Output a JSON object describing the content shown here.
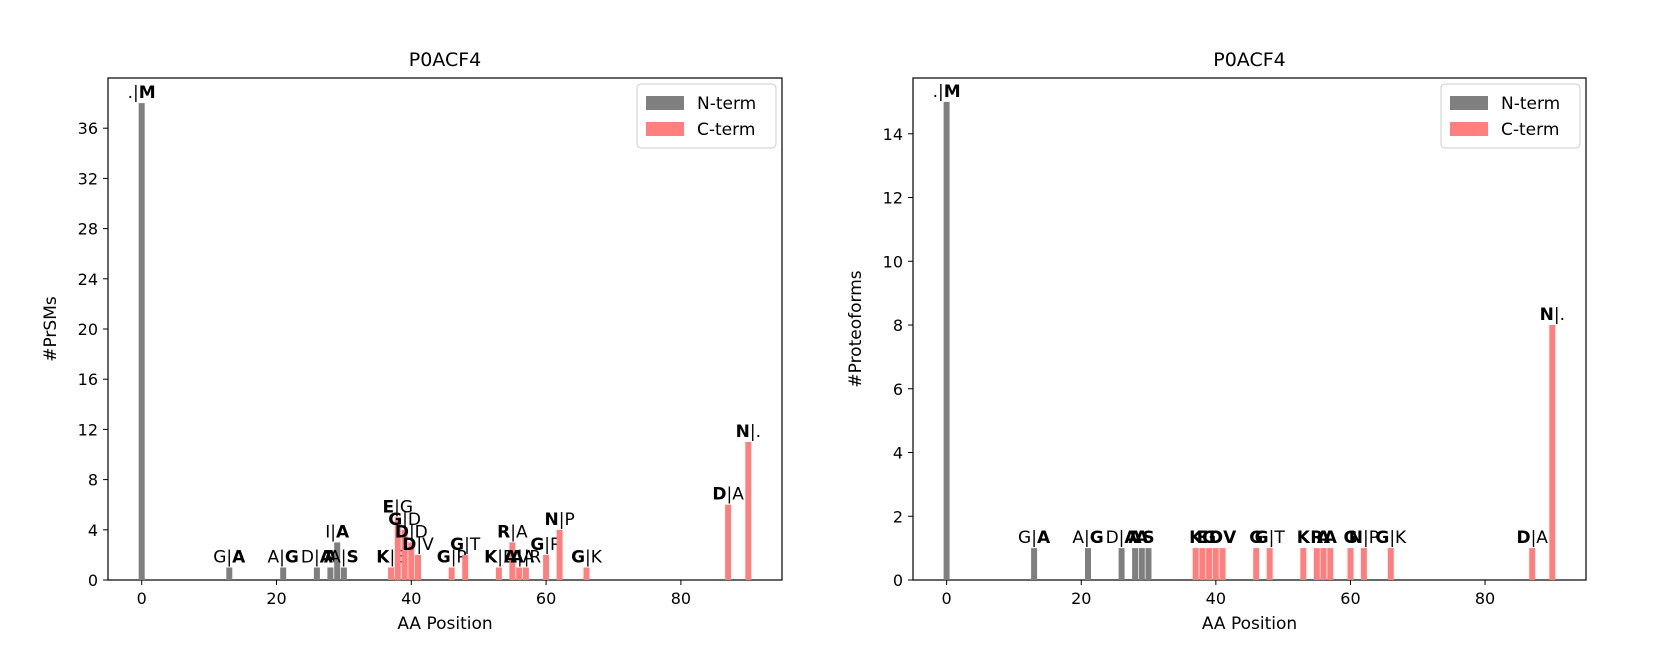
{
  "colors": {
    "nterm": "#7f7f7f",
    "cterm": "#ff7f7f",
    "axis": "#000000",
    "background": "#ffffff"
  },
  "chart_data": [
    {
      "type": "bar",
      "title": "P0ACF4",
      "xlabel": "AA Position",
      "ylabel": "#PrSMs",
      "xlim": [
        -5,
        95
      ],
      "ylim": [
        0,
        40
      ],
      "xticks": [
        0,
        20,
        40,
        60,
        80
      ],
      "yticks": [
        0,
        4,
        8,
        12,
        16,
        20,
        24,
        28,
        32,
        36
      ],
      "grid": false,
      "legend": {
        "position": "top-right",
        "entries": [
          {
            "series": "nterm",
            "label": "N-term"
          },
          {
            "series": "cterm",
            "label": "C-term"
          }
        ]
      },
      "series": [
        {
          "name": "N-term",
          "key": "nterm",
          "points": [
            {
              "x": 0,
              "y": 38,
              "label": [
                [
                  ".|",
                  false
                ],
                [
                  "M",
                  true
                ]
              ]
            },
            {
              "x": 13,
              "y": 1,
              "label": [
                [
                  "G|",
                  false
                ],
                [
                  "A",
                  true
                ]
              ]
            },
            {
              "x": 21,
              "y": 1,
              "label": [
                [
                  "A|",
                  false
                ],
                [
                  "G",
                  true
                ]
              ]
            },
            {
              "x": 26,
              "y": 1,
              "label": [
                [
                  "D|",
                  false
                ],
                [
                  "A",
                  true
                ]
              ]
            },
            {
              "x": 28,
              "y": 1,
              "label": [
                [
                  "A",
                  true
                ]
              ]
            },
            {
              "x": 29,
              "y": 3,
              "label": [
                [
                  "I|",
                  false
                ],
                [
                  "A",
                  true
                ]
              ]
            },
            {
              "x": 30,
              "y": 1,
              "label": [
                [
                  "A|",
                  false
                ],
                [
                  "S",
                  true
                ]
              ]
            }
          ]
        },
        {
          "name": "C-term",
          "key": "cterm",
          "points": [
            {
              "x": 37,
              "y": 1,
              "label": [
                [
                  "K",
                  true
                ],
                [
                  "|E",
                  false
                ]
              ]
            },
            {
              "x": 38,
              "y": 5,
              "label": [
                [
                  "E",
                  true
                ],
                [
                  "|G",
                  false
                ]
              ]
            },
            {
              "x": 39,
              "y": 4,
              "label": [
                [
                  "G",
                  true
                ],
                [
                  "|D",
                  false
                ]
              ]
            },
            {
              "x": 40,
              "y": 3,
              "label": [
                [
                  "D",
                  true
                ],
                [
                  "|D",
                  false
                ]
              ]
            },
            {
              "x": 41,
              "y": 2,
              "label": [
                [
                  "D",
                  true
                ],
                [
                  "|V",
                  false
                ]
              ]
            },
            {
              "x": 46,
              "y": 1,
              "label": [
                [
                  "G",
                  true
                ],
                [
                  "|P",
                  false
                ]
              ]
            },
            {
              "x": 48,
              "y": 2,
              "label": [
                [
                  "G",
                  true
                ],
                [
                  "|T",
                  false
                ]
              ]
            },
            {
              "x": 53,
              "y": 1,
              "label": [
                [
                  "K",
                  true
                ],
                [
                  "|E",
                  false
                ]
              ]
            },
            {
              "x": 55,
              "y": 3,
              "label": [
                [
                  "R",
                  true
                ],
                [
                  "|A",
                  false
                ]
              ]
            },
            {
              "x": 56,
              "y": 1,
              "label": [
                [
                  "A",
                  true
                ],
                [
                  "|A",
                  false
                ]
              ]
            },
            {
              "x": 57,
              "y": 1,
              "label": [
                [
                  "A",
                  true
                ],
                [
                  "|R",
                  false
                ]
              ]
            },
            {
              "x": 60,
              "y": 2,
              "label": [
                [
                  "G",
                  true
                ],
                [
                  "|R",
                  false
                ]
              ]
            },
            {
              "x": 62,
              "y": 4,
              "label": [
                [
                  "N",
                  true
                ],
                [
                  "|P",
                  false
                ]
              ]
            },
            {
              "x": 66,
              "y": 1,
              "label": [
                [
                  "G",
                  true
                ],
                [
                  "|K",
                  false
                ]
              ]
            },
            {
              "x": 87,
              "y": 6,
              "label": [
                [
                  "D",
                  true
                ],
                [
                  "|A",
                  false
                ]
              ]
            },
            {
              "x": 90,
              "y": 11,
              "label": [
                [
                  "N",
                  true
                ],
                [
                  "|.",
                  false
                ]
              ]
            }
          ]
        }
      ]
    },
    {
      "type": "bar",
      "title": "P0ACF4",
      "xlabel": "AA Position",
      "ylabel": "#Proteoforms",
      "xlim": [
        -5,
        95
      ],
      "ylim": [
        0,
        15.75
      ],
      "xticks": [
        0,
        20,
        40,
        60,
        80
      ],
      "yticks": [
        0,
        2,
        4,
        6,
        8,
        10,
        12,
        14
      ],
      "grid": false,
      "legend": {
        "position": "top-right",
        "entries": [
          {
            "series": "nterm",
            "label": "N-term"
          },
          {
            "series": "cterm",
            "label": "C-term"
          }
        ]
      },
      "series": [
        {
          "name": "N-term",
          "key": "nterm",
          "points": [
            {
              "x": 0,
              "y": 15,
              "label": [
                [
                  ".|",
                  false
                ],
                [
                  "M",
                  true
                ]
              ]
            },
            {
              "x": 13,
              "y": 1,
              "label": [
                [
                  "G|",
                  false
                ],
                [
                  "A",
                  true
                ]
              ]
            },
            {
              "x": 21,
              "y": 1,
              "label": [
                [
                  "A|",
                  false
                ],
                [
                  "G",
                  true
                ]
              ]
            },
            {
              "x": 26,
              "y": 1,
              "label": [
                [
                  "D|",
                  false
                ],
                [
                  "A",
                  true
                ]
              ]
            },
            {
              "x": 28,
              "y": 1,
              "label": [
                [
                  "A",
                  true
                ]
              ]
            },
            {
              "x": 29,
              "y": 1,
              "label": [
                [
                  "A",
                  true
                ]
              ]
            },
            {
              "x": 30,
              "y": 1,
              "label": [
                [
                  "S",
                  true
                ]
              ]
            }
          ]
        },
        {
          "name": "C-term",
          "key": "cterm",
          "points": [
            {
              "x": 37,
              "y": 1,
              "label": [
                [
                  "K",
                  true
                ]
              ]
            },
            {
              "x": 38,
              "y": 1,
              "label": [
                [
                  "E",
                  true
                ]
              ]
            },
            {
              "x": 39,
              "y": 1,
              "label": [
                [
                  "G",
                  true
                ]
              ]
            },
            {
              "x": 40,
              "y": 1,
              "label": [
                [
                  "D",
                  true
                ]
              ]
            },
            {
              "x": 41,
              "y": 1,
              "label": [
                [
                  "D",
                  true
                ],
                [
                  "V",
                  true
                ]
              ]
            },
            {
              "x": 46,
              "y": 1,
              "label": [
                [
                  "G",
                  true
                ]
              ]
            },
            {
              "x": 48,
              "y": 1,
              "label": [
                [
                  "G",
                  true
                ],
                [
                  "|T",
                  false
                ]
              ]
            },
            {
              "x": 53,
              "y": 1,
              "label": [
                [
                  "K",
                  true
                ]
              ]
            },
            {
              "x": 55,
              "y": 1,
              "label": [
                [
                  "R",
                  true
                ]
              ]
            },
            {
              "x": 56,
              "y": 1,
              "label": [
                [
                  "A",
                  true
                ]
              ]
            },
            {
              "x": 57,
              "y": 1,
              "label": [
                [
                  "A",
                  true
                ]
              ]
            },
            {
              "x": 60,
              "y": 1,
              "label": [
                [
                  "G",
                  true
                ]
              ]
            },
            {
              "x": 62,
              "y": 1,
              "label": [
                [
                  "N",
                  true
                ],
                [
                  "|P",
                  false
                ]
              ]
            },
            {
              "x": 66,
              "y": 1,
              "label": [
                [
                  "G",
                  true
                ],
                [
                  "|K",
                  false
                ]
              ]
            },
            {
              "x": 87,
              "y": 1,
              "label": [
                [
                  "D",
                  true
                ],
                [
                  "|A",
                  false
                ]
              ]
            },
            {
              "x": 90,
              "y": 8,
              "label": [
                [
                  "N",
                  true
                ],
                [
                  "|.",
                  false
                ]
              ]
            }
          ]
        }
      ]
    }
  ]
}
